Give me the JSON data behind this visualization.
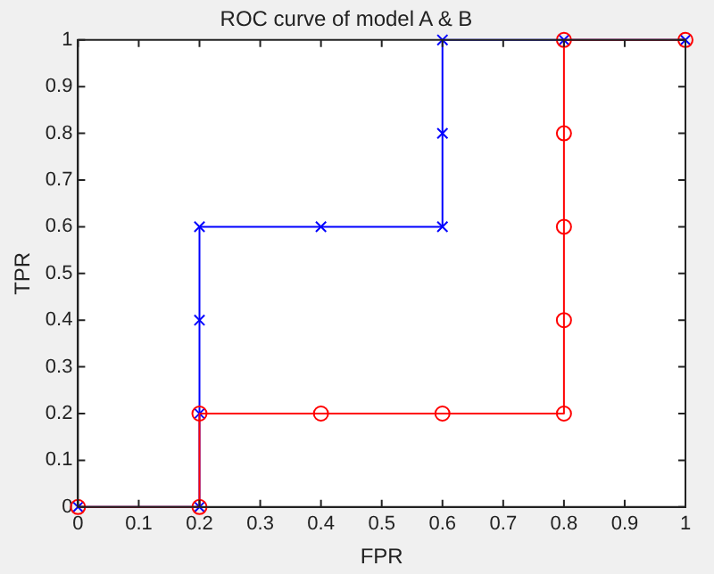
{
  "chart_data": {
    "type": "line",
    "title": "ROC curve of model A & B",
    "xlabel": "FPR",
    "ylabel": "TPR",
    "xlim": [
      0,
      1
    ],
    "ylim": [
      0,
      1
    ],
    "xticks": [
      0,
      0.1,
      0.2,
      0.3,
      0.4,
      0.5,
      0.6,
      0.7,
      0.8,
      0.9,
      1
    ],
    "yticks": [
      0,
      0.1,
      0.2,
      0.3,
      0.4,
      0.5,
      0.6,
      0.7,
      0.8,
      0.9,
      1
    ],
    "grid": false,
    "legend": false,
    "line_style": "solid",
    "series": [
      {
        "color": "#0000ff",
        "marker": "cross",
        "x": [
          0,
          0.2,
          0.2,
          0.2,
          0.2,
          0.4,
          0.6,
          0.6,
          0.6,
          0.8,
          1
        ],
        "values": [
          0,
          0,
          0.2,
          0.4,
          0.6,
          0.6,
          0.6,
          0.8,
          1,
          1,
          1
        ]
      },
      {
        "color": "#ff0000",
        "marker": "circle",
        "x": [
          0,
          0.2,
          0.2,
          0.4,
          0.6,
          0.8,
          0.8,
          0.8,
          0.8,
          0.8,
          1
        ],
        "values": [
          0,
          0,
          0.2,
          0.2,
          0.2,
          0.2,
          0.4,
          0.6,
          0.8,
          1,
          1
        ]
      }
    ]
  }
}
